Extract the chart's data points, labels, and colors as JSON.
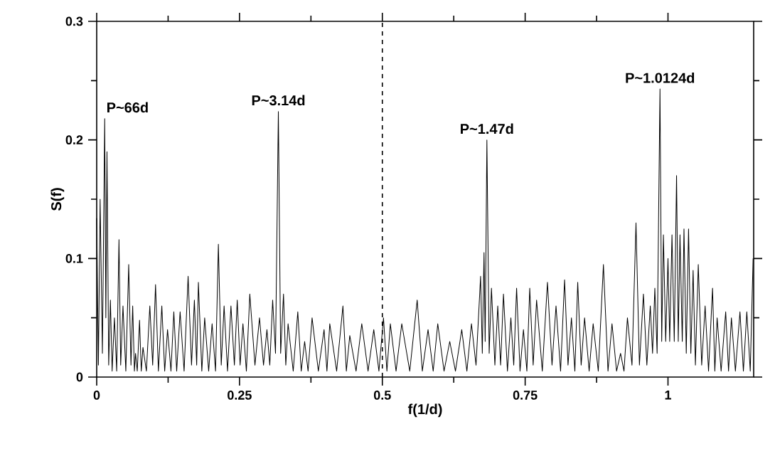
{
  "chart_data": {
    "type": "line",
    "xlabel": "f(1/d)",
    "ylabel": "S(f)",
    "xlim": [
      0,
      1.15
    ],
    "ylim": [
      0,
      0.3
    ],
    "xticks": [
      0,
      0.25,
      0.5,
      0.75,
      1
    ],
    "yticks": [
      0,
      0.1,
      0.2,
      0.3
    ],
    "line_style": "solid",
    "ref_lines": [
      {
        "axis": "x",
        "value": 0.5,
        "line_style": "dashed"
      }
    ],
    "annotations": [
      {
        "text": "P~66d",
        "x": 0.014,
        "y": 0.218
      },
      {
        "text": "P~3.14d",
        "x": 0.318,
        "y": 0.224
      },
      {
        "text": "P~1.47d",
        "x": 0.683,
        "y": 0.2
      },
      {
        "text": "P~1.0124d",
        "x": 0.986,
        "y": 0.243
      }
    ],
    "series": [
      {
        "color": "#000000",
        "x": [
          0,
          0.003,
          0.006,
          0.01,
          0.014,
          0.016,
          0.018,
          0.021,
          0.024,
          0.027,
          0.031,
          0.035,
          0.039,
          0.042,
          0.046,
          0.051,
          0.056,
          0.06,
          0.063,
          0.066,
          0.068,
          0.071,
          0.075,
          0.078,
          0.081,
          0.087,
          0.093,
          0.098,
          0.103,
          0.108,
          0.114,
          0.119,
          0.124,
          0.13,
          0.135,
          0.14,
          0.146,
          0.153,
          0.16,
          0.166,
          0.171,
          0.175,
          0.178,
          0.184,
          0.189,
          0.196,
          0.202,
          0.208,
          0.213,
          0.218,
          0.223,
          0.229,
          0.235,
          0.241,
          0.246,
          0.251,
          0.256,
          0.262,
          0.268,
          0.277,
          0.285,
          0.292,
          0.298,
          0.303,
          0.308,
          0.313,
          0.318,
          0.322,
          0.327,
          0.331,
          0.335,
          0.344,
          0.352,
          0.358,
          0.364,
          0.37,
          0.377,
          0.388,
          0.398,
          0.403,
          0.408,
          0.42,
          0.431,
          0.437,
          0.443,
          0.454,
          0.464,
          0.475,
          0.485,
          0.494,
          0.502,
          0.508,
          0.514,
          0.524,
          0.534,
          0.548,
          0.561,
          0.57,
          0.58,
          0.589,
          0.597,
          0.608,
          0.618,
          0.628,
          0.639,
          0.648,
          0.656,
          0.664,
          0.672,
          0.675,
          0.678,
          0.68,
          0.683,
          0.687,
          0.691,
          0.697,
          0.702,
          0.707,
          0.712,
          0.719,
          0.725,
          0.73,
          0.735,
          0.741,
          0.747,
          0.753,
          0.758,
          0.764,
          0.77,
          0.78,
          0.789,
          0.797,
          0.804,
          0.812,
          0.819,
          0.825,
          0.831,
          0.837,
          0.842,
          0.848,
          0.854,
          0.862,
          0.869,
          0.878,
          0.887,
          0.895,
          0.902,
          0.91,
          0.917,
          0.923,
          0.929,
          0.937,
          0.944,
          0.95,
          0.957,
          0.963,
          0.969,
          0.973,
          0.977,
          0.981,
          0.986,
          0.989,
          0.992,
          0.996,
          1.0,
          1.003,
          1.007,
          1.011,
          1.015,
          1.018,
          1.021,
          1.025,
          1.028,
          1.032,
          1.036,
          1.04,
          1.044,
          1.048,
          1.053,
          1.059,
          1.065,
          1.071,
          1.078,
          1.082,
          1.086,
          1.093,
          1.101,
          1.106,
          1.111,
          1.118,
          1.126,
          1.132,
          1.138,
          1.144,
          1.149
        ],
        "values": [
          0.134,
          0.01,
          0.15,
          0.02,
          0.218,
          0.05,
          0.19,
          0.01,
          0.065,
          0.005,
          0.05,
          0.005,
          0.116,
          0.01,
          0.06,
          0.005,
          0.095,
          0.01,
          0.06,
          0.005,
          0.02,
          0.005,
          0.048,
          0.005,
          0.025,
          0.005,
          0.06,
          0.01,
          0.078,
          0.005,
          0.06,
          0.005,
          0.04,
          0.005,
          0.055,
          0.005,
          0.055,
          0.005,
          0.085,
          0.01,
          0.065,
          0.01,
          0.08,
          0.005,
          0.05,
          0.005,
          0.045,
          0.005,
          0.112,
          0.01,
          0.06,
          0.005,
          0.06,
          0.01,
          0.065,
          0.01,
          0.045,
          0.005,
          0.07,
          0.01,
          0.05,
          0.01,
          0.04,
          0.01,
          0.065,
          0.02,
          0.224,
          0.02,
          0.07,
          0.01,
          0.045,
          0.005,
          0.055,
          0.005,
          0.03,
          0.005,
          0.05,
          0.005,
          0.04,
          0.005,
          0.045,
          0.005,
          0.06,
          0.005,
          0.035,
          0.005,
          0.045,
          0.005,
          0.04,
          0.005,
          0.05,
          0.005,
          0.045,
          0.005,
          0.045,
          0.005,
          0.065,
          0.005,
          0.04,
          0.005,
          0.045,
          0.005,
          0.03,
          0.005,
          0.04,
          0.005,
          0.045,
          0.01,
          0.085,
          0.02,
          0.105,
          0.03,
          0.2,
          0.02,
          0.075,
          0.01,
          0.06,
          0.01,
          0.07,
          0.005,
          0.05,
          0.01,
          0.075,
          0.005,
          0.04,
          0.005,
          0.075,
          0.01,
          0.065,
          0.005,
          0.08,
          0.01,
          0.06,
          0.005,
          0.082,
          0.01,
          0.05,
          0.005,
          0.08,
          0.01,
          0.05,
          0.005,
          0.045,
          0.005,
          0.095,
          0.005,
          0.045,
          0.005,
          0.02,
          0.005,
          0.05,
          0.01,
          0.13,
          0.01,
          0.07,
          0.01,
          0.06,
          0.02,
          0.075,
          0.02,
          0.243,
          0.03,
          0.12,
          0.03,
          0.1,
          0.03,
          0.12,
          0.03,
          0.17,
          0.03,
          0.12,
          0.03,
          0.125,
          0.02,
          0.125,
          0.02,
          0.09,
          0.01,
          0.095,
          0.01,
          0.06,
          0.005,
          0.075,
          0.005,
          0.05,
          0.005,
          0.055,
          0.005,
          0.05,
          0.005,
          0.055,
          0.005,
          0.055,
          0.005,
          0.1
        ]
      }
    ]
  }
}
